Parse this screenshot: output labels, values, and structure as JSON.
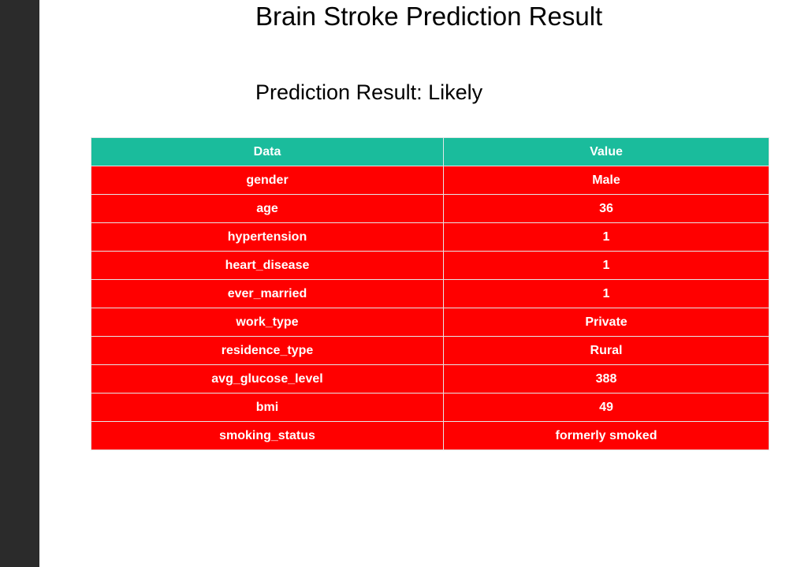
{
  "page": {
    "title": "Brain Stroke Prediction Result",
    "prediction_label": "Prediction Result:",
    "prediction_value": "Likely"
  },
  "table": {
    "headers": [
      "Data",
      "Value"
    ],
    "rows": [
      [
        "gender",
        "Male"
      ],
      [
        "age",
        "36"
      ],
      [
        "hypertension",
        "1"
      ],
      [
        "heart_disease",
        "1"
      ],
      [
        "ever_married",
        "1"
      ],
      [
        "work_type",
        "Private"
      ],
      [
        "residence_type",
        "Rural"
      ],
      [
        "avg_glucose_level",
        "388"
      ],
      [
        "bmi",
        "49"
      ],
      [
        "smoking_status",
        "formerly smoked"
      ]
    ]
  },
  "colors": {
    "header_bg": "#1abc9c",
    "row_bg": "#ff0000",
    "side_strip": "#2b2b2b"
  }
}
